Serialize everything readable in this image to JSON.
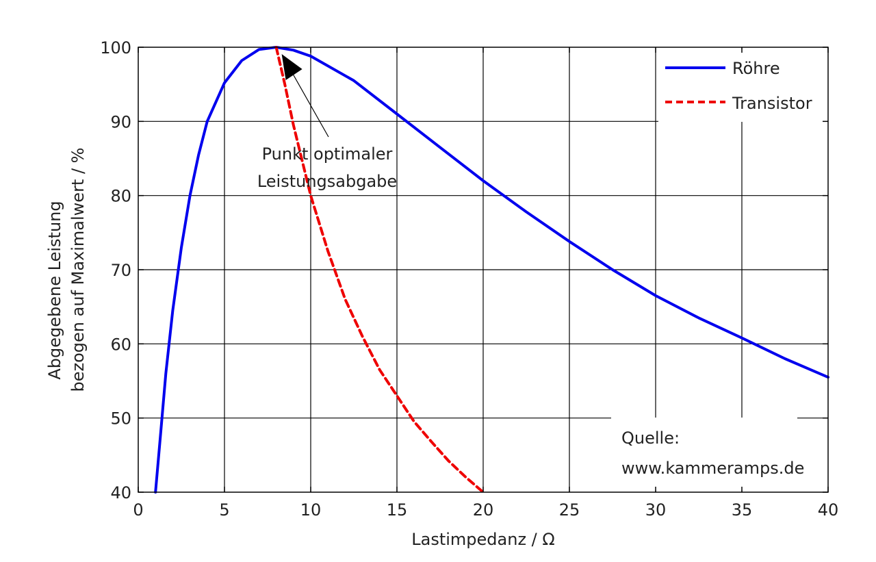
{
  "chart_data": {
    "type": "line",
    "xlabel": "Lastimpedanz / Ω",
    "ylabel_line1": "Abgegebene Leistung",
    "ylabel_line2": "bezogen auf Maximalwert / %",
    "xlim": [
      0,
      40
    ],
    "ylim": [
      40,
      100
    ],
    "x_ticks": [
      0,
      5,
      10,
      15,
      20,
      25,
      30,
      35,
      40
    ],
    "y_ticks": [
      40,
      50,
      60,
      70,
      80,
      90,
      100
    ],
    "grid": true,
    "legend_position": "top-right",
    "series": [
      {
        "name": "Röhre",
        "color": "#0000ee",
        "style": "solid",
        "x": [
          1.0,
          1.3,
          1.6,
          2.0,
          2.5,
          3.0,
          3.5,
          4.0,
          5.0,
          6.0,
          7.0,
          8.0,
          9.0,
          10.0,
          12.5,
          15.0,
          17.5,
          20.0,
          22.5,
          25.0,
          27.5,
          30.0,
          32.5,
          35.0,
          37.5,
          40.0
        ],
        "y": [
          40.0,
          48.0,
          56.0,
          64.5,
          73.0,
          80.0,
          85.5,
          90.0,
          95.2,
          98.2,
          99.7,
          100.0,
          99.6,
          98.8,
          95.5,
          91.0,
          86.5,
          82.0,
          77.8,
          73.8,
          70.0,
          66.5,
          63.5,
          60.8,
          58.0,
          55.5
        ]
      },
      {
        "name": "Transistor",
        "color": "#ee0000",
        "style": "dashed",
        "x": [
          8.0,
          8.5,
          9.0,
          10.0,
          11.0,
          12.0,
          13.0,
          14.0,
          15.0,
          16.0,
          17.0,
          18.0,
          19.0,
          20.0
        ],
        "y": [
          100.0,
          95.0,
          89.5,
          80.0,
          72.5,
          66.0,
          61.0,
          56.5,
          53.0,
          49.5,
          46.8,
          44.2,
          42.0,
          40.0
        ]
      }
    ],
    "annotations": [
      {
        "text_line1": "Punkt optimaler",
        "text_line2": "Leistungsabgabe",
        "arrow_to_x": 8.0,
        "arrow_to_y": 100.0
      },
      {
        "text_line1": "Quelle:",
        "text_line2": "www.kammeramps.de"
      }
    ]
  }
}
